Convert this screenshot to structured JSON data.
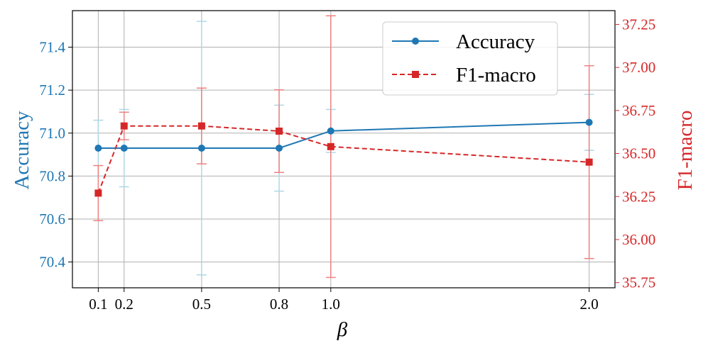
{
  "chart_data": {
    "type": "line",
    "x": [
      0.1,
      0.2,
      0.5,
      0.8,
      1.0,
      2.0
    ],
    "x_tick_labels": [
      "0.1",
      "0.2",
      "0.5",
      "0.8",
      "1.0",
      "2.0"
    ],
    "xlabel": "β",
    "xlim": [
      0.0,
      2.1
    ],
    "grid": true,
    "legend_position": "top-right",
    "series": [
      {
        "name": "Accuracy",
        "axis": "left",
        "color": "#1f77b4",
        "error_color": "#add8e6",
        "marker": "circle",
        "line_style": "solid",
        "values": [
          70.93,
          70.93,
          70.93,
          70.93,
          71.01,
          71.05
        ],
        "errors": [
          0.13,
          0.18,
          0.59,
          0.2,
          0.1,
          0.13
        ]
      },
      {
        "name": "F1-macro",
        "axis": "right",
        "color": "#d62728",
        "error_color": "#f08080",
        "marker": "square",
        "line_style": "dashed",
        "values": [
          36.27,
          36.66,
          36.66,
          36.63,
          36.54,
          36.45
        ],
        "errors": [
          0.16,
          0.08,
          0.22,
          0.24,
          0.76,
          0.56
        ]
      }
    ],
    "y_left": {
      "label": "Accuracy",
      "color": "#1f77b4",
      "ylim": [
        70.28,
        71.57
      ],
      "ticks": [
        70.4,
        70.6,
        70.8,
        71.0,
        71.2,
        71.4
      ],
      "tick_labels": [
        "70.4",
        "70.6",
        "70.8",
        "71.0",
        "71.2",
        "71.4"
      ]
    },
    "y_right": {
      "label": "F1-macro",
      "color": "#d62728",
      "ylim": [
        35.72,
        37.33
      ],
      "ticks": [
        35.75,
        36.0,
        36.25,
        36.5,
        36.75,
        37.0,
        37.25
      ],
      "tick_labels": [
        "35.75",
        "36.00",
        "36.25",
        "36.50",
        "36.75",
        "37.00",
        "37.25"
      ]
    }
  }
}
